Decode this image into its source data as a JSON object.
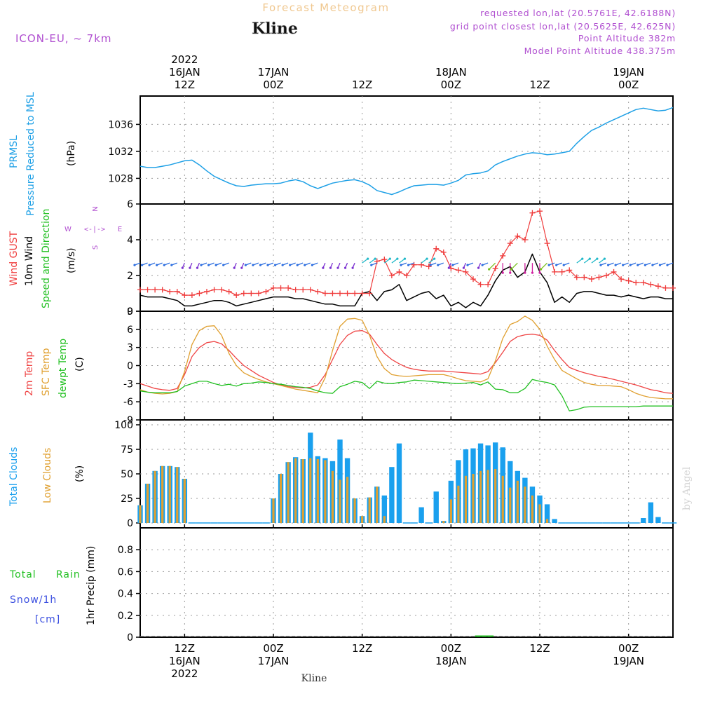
{
  "header": {
    "title": "Forecast Meteogram",
    "station": "Kline",
    "model": "ICON-EU, ~ 7km",
    "requested": "requested lon,lat (20.5761E, 42.6188N)",
    "grid_point": "grid point closest lon,lat (20.5625E, 42.625N)",
    "point_altitude": "Point Altitude 382m",
    "model_altitude": "Model Point Altitude 438.375m",
    "footer_station": "Kline",
    "watermark": "by Angel"
  },
  "colors": {
    "pressure": "#1ea0e6",
    "gust": "#ef3a3a",
    "wind": "#000000",
    "temp2m": "#ef4444",
    "sfc": "#e0a030",
    "dewpt": "#22c022",
    "total_clouds": "#1aa0ee",
    "low_clouds": "#e0a030",
    "purple": "#b04fd0",
    "title": "#f0c890",
    "grid": "#999999"
  },
  "time_axis": {
    "start_hour": 0,
    "end_hour": 72,
    "top_labels": [
      {
        "h": 6,
        "lines": [
          "2022",
          "16JAN",
          "12Z"
        ]
      },
      {
        "h": 18,
        "lines": [
          "17JAN",
          "00Z"
        ]
      },
      {
        "h": 30,
        "lines": [
          "12Z"
        ]
      },
      {
        "h": 42,
        "lines": [
          "18JAN",
          "00Z"
        ]
      },
      {
        "h": 54,
        "lines": [
          "12Z"
        ]
      },
      {
        "h": 66,
        "lines": [
          "19JAN",
          "00Z"
        ]
      }
    ],
    "bottom_labels": [
      {
        "h": 6,
        "lines": [
          "12Z",
          "16JAN",
          "2022"
        ]
      },
      {
        "h": 18,
        "lines": [
          "00Z",
          "17JAN"
        ]
      },
      {
        "h": 30,
        "lines": [
          "12Z"
        ]
      },
      {
        "h": 42,
        "lines": [
          "00Z",
          "18JAN"
        ]
      },
      {
        "h": 54,
        "lines": [
          "12Z"
        ]
      },
      {
        "h": 66,
        "lines": [
          "00Z",
          "19JAN"
        ]
      }
    ]
  },
  "panel_labels": {
    "pressure": {
      "label1": "PRMSL",
      "label2": "Pressure Reduced to MSL",
      "unit": "(hPa)"
    },
    "wind": {
      "gust": "Wind GUST",
      "wind10m": "10m Wind",
      "speed_dir": "Speed and Direction",
      "unit": "(m/s)",
      "compass_n": "N",
      "compass_s": "S",
      "compass_w": "W",
      "compass_e": "E",
      "compass_body": "<-|->"
    },
    "temp": {
      "t2m": "2m Temp",
      "sfc": "SFC Temp",
      "dewpt": "dewpt Temp",
      "unit": "(C)"
    },
    "clouds": {
      "total": "Total Clouds",
      "low": "Low Clouds",
      "unit": "(%)"
    },
    "precip": {
      "total": "Total",
      "rain": "Rain",
      "snow": "Snow/1h",
      "cm": "[cm]",
      "axis": "1hr Precip (mm)"
    }
  },
  "chart_data": [
    {
      "type": "line",
      "name": "pressure",
      "ylabel": "(hPa)",
      "ylim": [
        1024.2,
        1040.2
      ],
      "yticks": [
        1028,
        1032,
        1036
      ],
      "x": [
        0,
        1,
        2,
        3,
        4,
        5,
        6,
        7,
        8,
        9,
        10,
        11,
        12,
        13,
        14,
        15,
        16,
        17,
        18,
        19,
        20,
        21,
        22,
        23,
        24,
        25,
        26,
        27,
        28,
        29,
        30,
        31,
        32,
        33,
        34,
        35,
        36,
        37,
        38,
        39,
        40,
        41,
        42,
        43,
        44,
        45,
        46,
        47,
        48,
        49,
        50,
        51,
        52,
        53,
        54,
        55,
        56,
        57,
        58,
        59,
        60,
        61,
        62,
        63,
        64,
        65,
        66,
        67,
        68,
        69,
        70,
        71,
        72
      ],
      "values": [
        1029.8,
        1029.6,
        1029.6,
        1029.8,
        1030.0,
        1030.3,
        1030.6,
        1030.7,
        1030.0,
        1029.1,
        1028.3,
        1027.8,
        1027.3,
        1026.9,
        1026.8,
        1027.0,
        1027.1,
        1027.2,
        1027.2,
        1027.3,
        1027.6,
        1027.8,
        1027.5,
        1026.9,
        1026.5,
        1026.9,
        1027.3,
        1027.5,
        1027.7,
        1027.8,
        1027.5,
        1027.0,
        1026.2,
        1025.9,
        1025.6,
        1026.0,
        1026.5,
        1026.9,
        1027.0,
        1027.1,
        1027.1,
        1027.0,
        1027.3,
        1027.7,
        1028.5,
        1028.7,
        1028.8,
        1029.1,
        1030.0,
        1030.5,
        1030.9,
        1031.3,
        1031.6,
        1031.8,
        1031.7,
        1031.5,
        1031.6,
        1031.8,
        1032.0,
        1033.2,
        1034.2,
        1035.1,
        1035.6,
        1036.2,
        1036.7,
        1037.2,
        1037.7,
        1038.2,
        1038.4,
        1038.2,
        1038.0,
        1038.1,
        1038.5
      ],
      "grid": true
    },
    {
      "type": "line",
      "name": "wind",
      "ylabel": "(m/s)",
      "ylim": [
        0,
        6
      ],
      "yticks": [
        0,
        2,
        4,
        6
      ],
      "x": [
        0,
        1,
        2,
        3,
        4,
        5,
        6,
        7,
        8,
        9,
        10,
        11,
        12,
        13,
        14,
        15,
        16,
        17,
        18,
        19,
        20,
        21,
        22,
        23,
        24,
        25,
        26,
        27,
        28,
        29,
        30,
        31,
        32,
        33,
        34,
        35,
        36,
        37,
        38,
        39,
        40,
        41,
        42,
        43,
        44,
        45,
        46,
        47,
        48,
        49,
        50,
        51,
        52,
        53,
        54,
        55,
        56,
        57,
        58,
        59,
        60,
        61,
        62,
        63,
        64,
        65,
        66,
        67,
        68,
        69,
        70,
        71,
        72
      ],
      "series": [
        {
          "name": "Wind GUST",
          "values": [
            1.2,
            1.2,
            1.2,
            1.2,
            1.1,
            1.1,
            0.9,
            0.9,
            1.0,
            1.1,
            1.2,
            1.2,
            1.1,
            0.9,
            1.0,
            1.0,
            1.0,
            1.1,
            1.3,
            1.3,
            1.3,
            1.2,
            1.2,
            1.2,
            1.1,
            1.0,
            1.0,
            1.0,
            1.0,
            1.0,
            1.0,
            1.0,
            2.8,
            2.9,
            2.0,
            2.2,
            2.0,
            2.6,
            2.6,
            2.5,
            3.5,
            3.3,
            2.4,
            2.3,
            2.2,
            1.8,
            1.5,
            1.5,
            2.4,
            3.1,
            3.8,
            4.2,
            4.0,
            5.5,
            5.6,
            3.8,
            2.2,
            2.2,
            2.3,
            1.9,
            1.9,
            1.8,
            1.9,
            2.0,
            2.2,
            1.8,
            1.7,
            1.6,
            1.6,
            1.5,
            1.4,
            1.3,
            1.3
          ]
        },
        {
          "name": "10m Wind",
          "values": [
            0.9,
            0.8,
            0.8,
            0.8,
            0.7,
            0.6,
            0.3,
            0.3,
            0.4,
            0.5,
            0.6,
            0.6,
            0.5,
            0.3,
            0.4,
            0.5,
            0.6,
            0.7,
            0.8,
            0.8,
            0.8,
            0.7,
            0.7,
            0.6,
            0.5,
            0.4,
            0.4,
            0.3,
            0.3,
            0.3,
            1.0,
            1.1,
            0.6,
            1.1,
            1.2,
            1.5,
            0.6,
            0.8,
            1.0,
            1.1,
            0.7,
            0.9,
            0.3,
            0.5,
            0.2,
            0.5,
            0.3,
            0.9,
            1.7,
            2.3,
            2.5,
            1.9,
            2.2,
            3.2,
            2.2,
            1.6,
            0.5,
            0.8,
            0.5,
            1.0,
            1.1,
            1.1,
            1.0,
            0.9,
            0.9,
            0.8,
            0.9,
            0.8,
            0.7,
            0.8,
            0.8,
            0.7,
            0.7
          ]
        }
      ],
      "grid": true
    },
    {
      "type": "line",
      "name": "temperature",
      "ylabel": "(C)",
      "ylim": [
        -9,
        9
      ],
      "yticks": [
        -9,
        -6,
        -3,
        0,
        3,
        6,
        9
      ],
      "x": [
        0,
        1,
        2,
        3,
        4,
        5,
        6,
        7,
        8,
        9,
        10,
        11,
        12,
        13,
        14,
        15,
        16,
        17,
        18,
        19,
        20,
        21,
        22,
        23,
        24,
        25,
        26,
        27,
        28,
        29,
        30,
        31,
        32,
        33,
        34,
        35,
        36,
        37,
        38,
        39,
        40,
        41,
        42,
        43,
        44,
        45,
        46,
        47,
        48,
        49,
        50,
        51,
        52,
        53,
        54,
        55,
        56,
        57,
        58,
        59,
        60,
        61,
        62,
        63,
        64,
        65,
        66,
        67,
        68,
        69,
        70,
        71,
        72
      ],
      "series": [
        {
          "name": "2m Temp",
          "values": [
            -3.0,
            -3.4,
            -3.8,
            -4.0,
            -4.1,
            -3.8,
            -1.5,
            1.5,
            3.0,
            3.8,
            4.0,
            3.6,
            2.5,
            1.2,
            0.0,
            -0.8,
            -1.6,
            -2.2,
            -2.8,
            -3.2,
            -3.5,
            -3.6,
            -3.7,
            -3.6,
            -3.2,
            -1.5,
            1.0,
            3.5,
            5.0,
            5.7,
            5.8,
            5.2,
            3.5,
            2.0,
            1.0,
            0.3,
            -0.3,
            -0.6,
            -0.8,
            -0.9,
            -0.9,
            -0.9,
            -1.0,
            -1.1,
            -1.2,
            -1.3,
            -1.4,
            -1.0,
            0.5,
            2.2,
            4.0,
            4.8,
            5.1,
            5.2,
            5.0,
            4.2,
            2.5,
            1.0,
            -0.3,
            -0.8,
            -1.2,
            -1.5,
            -1.8,
            -2.0,
            -2.3,
            -2.6,
            -2.9,
            -3.2,
            -3.6,
            -4.0,
            -4.2,
            -4.5,
            -4.6
          ]
        },
        {
          "name": "SFC Temp",
          "values": [
            -4.0,
            -4.4,
            -4.6,
            -4.7,
            -4.6,
            -4.3,
            -1.0,
            3.5,
            5.8,
            6.5,
            6.6,
            5.0,
            2.0,
            0.0,
            -1.2,
            -1.8,
            -2.3,
            -2.7,
            -3.0,
            -3.3,
            -3.6,
            -3.9,
            -4.1,
            -4.3,
            -4.5,
            -2.0,
            2.5,
            6.5,
            7.7,
            7.8,
            7.5,
            5.0,
            1.5,
            -0.5,
            -1.5,
            -1.7,
            -1.8,
            -1.7,
            -1.6,
            -1.5,
            -1.5,
            -1.5,
            -1.8,
            -2.2,
            -2.5,
            -2.6,
            -2.7,
            -2.2,
            0.8,
            4.5,
            6.8,
            7.3,
            8.2,
            7.5,
            6.0,
            3.2,
            1.0,
            -0.8,
            -1.5,
            -2.2,
            -2.8,
            -3.1,
            -3.3,
            -3.3,
            -3.4,
            -3.5,
            -4.0,
            -4.6,
            -5.0,
            -5.3,
            -5.4,
            -5.5,
            -5.5
          ]
        },
        {
          "name": "dewpt Temp",
          "values": [
            -4.2,
            -4.4,
            -4.5,
            -4.5,
            -4.5,
            -4.3,
            -3.4,
            -3.0,
            -2.6,
            -2.6,
            -3.0,
            -3.3,
            -3.1,
            -3.4,
            -3.0,
            -2.9,
            -2.7,
            -2.8,
            -3.0,
            -3.1,
            -3.3,
            -3.5,
            -3.6,
            -3.8,
            -4.2,
            -4.5,
            -4.6,
            -3.5,
            -3.1,
            -2.6,
            -2.8,
            -3.8,
            -2.6,
            -2.9,
            -3.0,
            -2.8,
            -2.7,
            -2.4,
            -2.5,
            -2.6,
            -2.7,
            -2.8,
            -2.9,
            -3.0,
            -2.9,
            -2.8,
            -3.2,
            -2.7,
            -3.9,
            -4.0,
            -4.5,
            -4.5,
            -3.8,
            -2.3,
            -2.6,
            -2.8,
            -3.2,
            -5.0,
            -7.5,
            -7.3,
            -6.9,
            -6.8,
            -6.8,
            -6.8,
            -6.8,
            -6.8,
            -6.8,
            -6.8,
            -6.7,
            -6.7,
            -6.7,
            -6.7,
            -6.7
          ]
        }
      ],
      "grid": true
    },
    {
      "type": "bar",
      "name": "clouds",
      "ylabel": "(%)",
      "ylim": [
        -5,
        105
      ],
      "yticks": [
        0,
        25,
        50,
        75,
        100
      ],
      "x": [
        0,
        1,
        2,
        3,
        4,
        5,
        6,
        7,
        8,
        9,
        10,
        11,
        12,
        13,
        14,
        15,
        16,
        17,
        18,
        19,
        20,
        21,
        22,
        23,
        24,
        25,
        26,
        27,
        28,
        29,
        30,
        31,
        32,
        33,
        34,
        35,
        36,
        37,
        38,
        39,
        40,
        41,
        42,
        43,
        44,
        45,
        46,
        47,
        48,
        49,
        50,
        51,
        52,
        53,
        54,
        55,
        56,
        57,
        58,
        59,
        60,
        61,
        62,
        63,
        64,
        65,
        66,
        67,
        68,
        69,
        70,
        71,
        72
      ],
      "series": [
        {
          "name": "Total Clouds",
          "values": [
            18,
            40,
            53,
            58,
            58,
            57,
            45,
            0,
            0,
            0,
            0,
            0,
            0,
            0,
            0,
            0,
            0,
            0,
            25,
            50,
            62,
            67,
            65,
            92,
            68,
            66,
            63,
            85,
            66,
            25,
            7,
            26,
            37,
            28,
            57,
            81,
            0,
            0,
            16,
            0,
            32,
            2,
            43,
            64,
            75,
            76,
            81,
            79,
            82,
            77,
            63,
            53,
            46,
            37,
            28,
            19,
            4,
            0,
            0,
            0,
            0,
            0,
            0,
            0,
            0,
            0,
            0,
            0,
            5,
            21,
            6,
            0,
            0
          ]
        },
        {
          "name": "Low Clouds",
          "values": [
            18,
            40,
            53,
            58,
            58,
            57,
            45,
            0,
            0,
            0,
            0,
            0,
            0,
            0,
            0,
            0,
            0,
            0,
            25,
            50,
            62,
            66,
            65,
            66,
            65,
            64,
            53,
            44,
            47,
            25,
            7,
            26,
            37,
            7,
            0,
            0,
            0,
            0,
            0,
            0,
            0,
            2,
            24,
            38,
            48,
            50,
            53,
            54,
            55,
            48,
            36,
            43,
            37,
            28,
            19,
            4,
            0,
            0,
            0,
            0,
            0,
            0,
            0,
            0,
            0,
            0,
            0,
            0,
            0,
            0,
            0,
            0,
            0
          ]
        }
      ],
      "grid": true
    },
    {
      "type": "line",
      "name": "precipitation",
      "ylabel": "1hr Precip (mm)",
      "ylim": [
        0,
        1.0
      ],
      "yticks": [
        0,
        0.2,
        0.4,
        0.6,
        0.8
      ],
      "x": [
        46,
        47
      ],
      "series": [
        {
          "name": "Total Rain",
          "values": [
            0.01,
            0.01
          ]
        }
      ],
      "grid": true
    }
  ]
}
